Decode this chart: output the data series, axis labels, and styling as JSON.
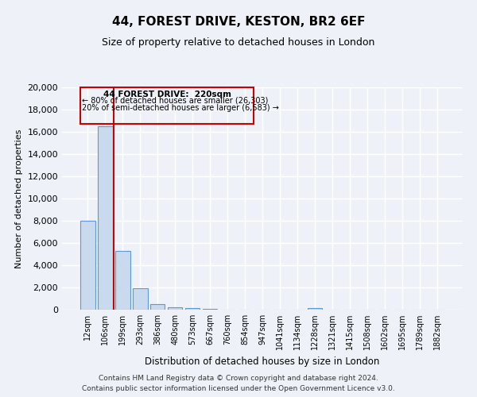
{
  "title": "44, FOREST DRIVE, KESTON, BR2 6EF",
  "subtitle": "Size of property relative to detached houses in London",
  "xlabel": "Distribution of detached houses by size in London",
  "ylabel": "Number of detached properties",
  "bar_color": "#c9d9ee",
  "bar_edge_color": "#5b9bd5",
  "annotation_box_color": "#cc0000",
  "vline_color": "#cc0000",
  "annotation_title": "44 FOREST DRIVE:  220sqm",
  "annotation_line1": "← 80% of detached houses are smaller (26,303)",
  "annotation_line2": "20% of semi-detached houses are larger (6,583) →",
  "footer1": "Contains HM Land Registry data © Crown copyright and database right 2024.",
  "footer2": "Contains public sector information licensed under the Open Government Licence v3.0.",
  "categories": [
    "12sqm",
    "106sqm",
    "199sqm",
    "293sqm",
    "386sqm",
    "480sqm",
    "573sqm",
    "667sqm",
    "760sqm",
    "854sqm",
    "947sqm",
    "1041sqm",
    "1134sqm",
    "1228sqm",
    "1321sqm",
    "1415sqm",
    "1508sqm",
    "1602sqm",
    "1695sqm",
    "1789sqm",
    "1882sqm"
  ],
  "values": [
    8000,
    16500,
    5300,
    1900,
    500,
    200,
    120,
    50,
    30,
    20,
    20,
    15,
    10,
    120,
    10,
    10,
    5,
    5,
    5,
    5,
    5
  ],
  "ylim": [
    0,
    20000
  ],
  "yticks": [
    0,
    2000,
    4000,
    6000,
    8000,
    10000,
    12000,
    14000,
    16000,
    18000,
    20000
  ],
  "background_color": "#eef2f8",
  "plot_background": "#eef2f8",
  "grid_color": "#d0d8e8"
}
